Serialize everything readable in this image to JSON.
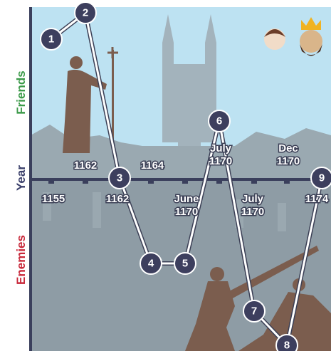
{
  "side_labels": {
    "top": "Friends",
    "middle": "Year",
    "bottom": "Enemies"
  },
  "year_labels": [
    {
      "lines": [
        "1162"
      ]
    },
    {
      "lines": [
        "1164"
      ]
    },
    {
      "lines": [
        "July",
        "1170"
      ]
    },
    {
      "lines": [
        "Dec",
        "1170"
      ]
    },
    {
      "lines": [
        "1155"
      ]
    },
    {
      "lines": [
        "1162"
      ]
    },
    {
      "lines": [
        "June",
        "1170"
      ]
    },
    {
      "lines": [
        "July",
        "1170"
      ]
    },
    {
      "lines": [
        "1174"
      ]
    }
  ],
  "nodes": [
    {
      "label": "1"
    },
    {
      "label": "2"
    },
    {
      "label": "3"
    },
    {
      "label": "4"
    },
    {
      "label": "5"
    },
    {
      "label": "6"
    },
    {
      "label": "7"
    },
    {
      "label": "8"
    },
    {
      "label": "9"
    }
  ]
}
